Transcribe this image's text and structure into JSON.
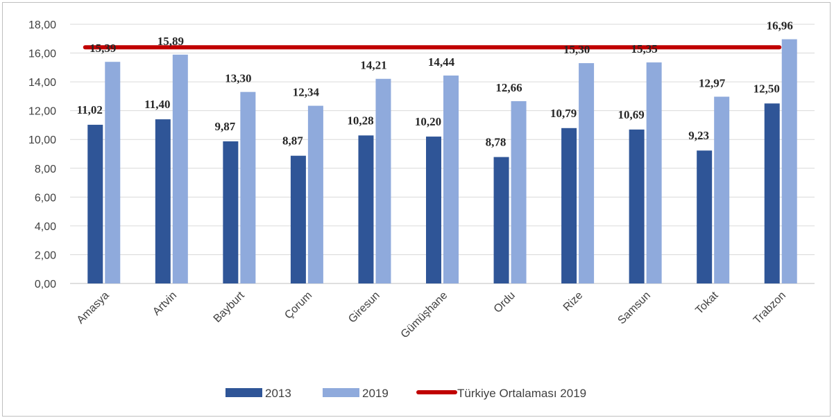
{
  "chart_data": {
    "type": "bar",
    "categories": [
      "Amasya",
      "Artvin",
      "Bayburt",
      "Çorum",
      "Giresun",
      "Gümüşhane",
      "Ordu",
      "Rize",
      "Samsun",
      "Tokat",
      "Trabzon"
    ],
    "series": [
      {
        "name": "2013",
        "color": "#2F5597",
        "values": [
          11.02,
          11.4,
          9.87,
          8.87,
          10.28,
          10.2,
          8.78,
          10.79,
          10.69,
          9.23,
          12.5
        ],
        "labels": [
          "11,02",
          "11,40",
          "9,87",
          "8,87",
          "10,28",
          "10,20",
          "8,78",
          "10,79",
          "10,69",
          "9,23",
          "12,50"
        ]
      },
      {
        "name": "2019",
        "color": "#8FAADC",
        "values": [
          15.39,
          15.89,
          13.3,
          12.34,
          14.21,
          14.44,
          12.66,
          15.3,
          15.35,
          12.97,
          16.96
        ],
        "labels": [
          "15,39",
          "15,89",
          "13,30",
          "12,34",
          "14,21",
          "14,44",
          "12,66",
          "15,30",
          "15,35",
          "12,97",
          "16,96"
        ]
      }
    ],
    "reference_line": {
      "name": "Türkiye Ortalaması 2019",
      "color": "#C00000",
      "value": 16.4
    },
    "ylim": [
      0,
      18
    ],
    "yticks": [
      0,
      2,
      4,
      6,
      8,
      10,
      12,
      14,
      16,
      18
    ],
    "ytick_labels": [
      "0,00",
      "2,00",
      "4,00",
      "6,00",
      "8,00",
      "10,00",
      "12,00",
      "14,00",
      "16,00",
      "18,00"
    ],
    "grid": true,
    "legend_position": "bottom",
    "title": "",
    "xlabel": "",
    "ylabel": ""
  },
  "legend": {
    "item_2013": "2013",
    "item_2019": "2019",
    "item_avg": "Türkiye Ortalaması 2019"
  }
}
